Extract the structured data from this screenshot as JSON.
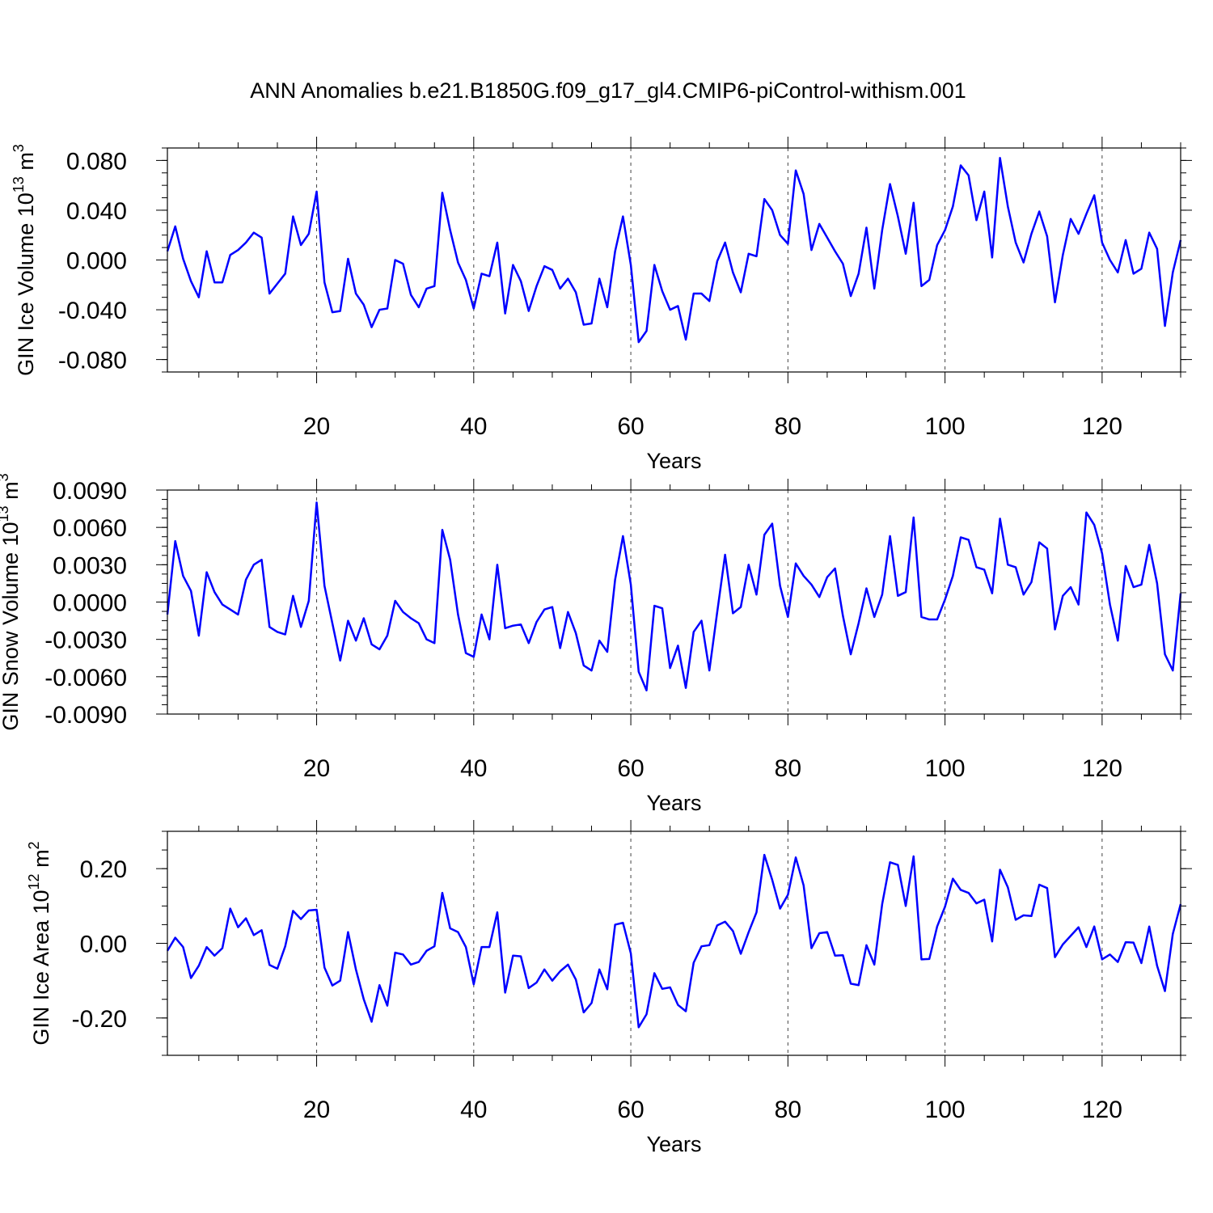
{
  "chart_data": {
    "title": "ANN Anomalies b.e21.B1850G.f09_g17_gl4.CMIP6-piControl-withism.001",
    "line_color": "#0000ff",
    "panels": [
      {
        "type": "line",
        "ylabel": "GIN Ice Volume 10",
        "ylabel_exp": "13",
        "ylabel_unit": " m",
        "ylabel_unit_exp": "3",
        "xlabel": "Years",
        "xlim": [
          1,
          130
        ],
        "ylim": [
          -0.09,
          0.09
        ],
        "xticks": [
          20,
          40,
          60,
          80,
          100,
          120
        ],
        "xtick_labels": [
          "20",
          "40",
          "60",
          "80",
          "100",
          "120"
        ],
        "yticks": [
          -0.08,
          -0.04,
          0.0,
          0.04,
          0.08
        ],
        "ytick_labels": [
          "-0.080",
          "-0.040",
          "0.000",
          "0.040",
          "0.080"
        ],
        "values": [
          0.007,
          0.027,
          0.001,
          -0.017,
          -0.03,
          0.007,
          -0.018,
          -0.018,
          0.004,
          0.008,
          0.014,
          0.022,
          0.018,
          -0.027,
          -0.019,
          -0.011,
          0.035,
          0.012,
          0.021,
          0.055,
          -0.018,
          -0.042,
          -0.041,
          0.001,
          -0.027,
          -0.036,
          -0.054,
          -0.04,
          -0.039,
          0.0,
          -0.003,
          -0.028,
          -0.038,
          -0.023,
          -0.021,
          0.054,
          0.024,
          -0.002,
          -0.016,
          -0.039,
          -0.011,
          -0.013,
          0.014,
          -0.043,
          -0.004,
          -0.017,
          -0.041,
          -0.021,
          -0.005,
          -0.008,
          -0.023,
          -0.015,
          -0.026,
          -0.052,
          -0.051,
          -0.015,
          -0.038,
          0.007,
          0.035,
          -0.004,
          -0.066,
          -0.057,
          -0.004,
          -0.025,
          -0.04,
          -0.037,
          -0.064,
          -0.027,
          -0.027,
          -0.033,
          -0.001,
          0.014,
          -0.01,
          -0.026,
          0.005,
          0.003,
          0.049,
          0.04,
          0.02,
          0.013,
          0.072,
          0.053,
          0.008,
          0.029,
          0.018,
          0.007,
          -0.003,
          -0.029,
          -0.011,
          0.026,
          -0.023,
          0.024,
          0.061,
          0.035,
          0.005,
          0.046,
          -0.021,
          -0.016,
          0.012,
          0.024,
          0.043,
          0.076,
          0.068,
          0.032,
          0.055,
          0.002,
          0.082,
          0.043,
          0.014,
          -0.002,
          0.021,
          0.039,
          0.019,
          -0.034,
          0.004,
          0.033,
          0.021,
          0.037,
          0.052,
          0.014,
          0.0,
          -0.01,
          0.016,
          -0.011,
          -0.007,
          0.022,
          0.009,
          -0.053,
          -0.01,
          0.016
        ]
      },
      {
        "type": "line",
        "ylabel": "GIN Snow Volume 10",
        "ylabel_exp": "13",
        "ylabel_unit": " m",
        "ylabel_unit_exp": "3",
        "xlabel": "Years",
        "xlim": [
          1,
          130
        ],
        "ylim": [
          -0.009,
          0.009
        ],
        "xticks": [
          20,
          40,
          60,
          80,
          100,
          120
        ],
        "xtick_labels": [
          "20",
          "40",
          "60",
          "80",
          "100",
          "120"
        ],
        "yticks": [
          -0.009,
          -0.006,
          -0.003,
          0.0,
          0.003,
          0.006,
          0.009
        ],
        "ytick_labels": [
          "-0.0090",
          "-0.0060",
          "-0.0030",
          "0.0000",
          "0.0030",
          "0.0060",
          "0.0090"
        ],
        "values": [
          -0.001,
          0.0049,
          0.0021,
          0.0009,
          -0.0027,
          0.0024,
          0.0008,
          -0.0002,
          -0.0006,
          -0.001,
          0.0018,
          0.003,
          0.0034,
          -0.002,
          -0.0024,
          -0.0026,
          0.0005,
          -0.002,
          0.0001,
          0.008,
          0.0013,
          -0.0017,
          -0.0047,
          -0.0015,
          -0.0031,
          -0.0013,
          -0.0034,
          -0.0038,
          -0.0027,
          0.0001,
          -0.0008,
          -0.0013,
          -0.0017,
          -0.003,
          -0.0033,
          0.0058,
          0.0034,
          -0.001,
          -0.0041,
          -0.0044,
          -0.001,
          -0.003,
          0.003,
          -0.0021,
          -0.0019,
          -0.0018,
          -0.0033,
          -0.0016,
          -0.0006,
          -0.0004,
          -0.0037,
          -0.0008,
          -0.0025,
          -0.0051,
          -0.0055,
          -0.0031,
          -0.004,
          0.0018,
          0.0053,
          0.0014,
          -0.0056,
          -0.0071,
          -0.0003,
          -0.0005,
          -0.0053,
          -0.0035,
          -0.0069,
          -0.0024,
          -0.0015,
          -0.0055,
          -0.0008,
          0.0038,
          -0.0009,
          -0.0004,
          0.003,
          0.0006,
          0.0054,
          0.0063,
          0.0013,
          -0.0012,
          0.0031,
          0.0021,
          0.0014,
          0.0004,
          0.002,
          0.0027,
          -0.0011,
          -0.0042,
          -0.0017,
          0.0011,
          -0.0012,
          0.0006,
          0.0053,
          0.0005,
          0.0008,
          0.0068,
          -0.0012,
          -0.0014,
          -0.0014,
          0.0002,
          0.0021,
          0.0052,
          0.005,
          0.0028,
          0.0026,
          0.0007,
          0.0067,
          0.003,
          0.0028,
          0.0006,
          0.0016,
          0.0048,
          0.0043,
          -0.0022,
          0.0005,
          0.0012,
          -0.0002,
          0.0072,
          0.0062,
          0.0039,
          -0.0002,
          -0.0031,
          0.0029,
          0.0012,
          0.0014,
          0.0046,
          0.0015,
          -0.0042,
          -0.0055,
          0.0007
        ]
      },
      {
        "type": "line",
        "ylabel": "GIN Ice Area 10",
        "ylabel_exp": "12",
        "ylabel_unit": " m",
        "ylabel_unit_exp": "2",
        "xlabel": "Years",
        "xlim": [
          1,
          130
        ],
        "ylim": [
          -0.3,
          0.3
        ],
        "xticks": [
          20,
          40,
          60,
          80,
          100,
          120
        ],
        "xtick_labels": [
          "20",
          "40",
          "60",
          "80",
          "100",
          "120"
        ],
        "yticks": [
          -0.2,
          0.0,
          0.2
        ],
        "ytick_labels": [
          "-0.20",
          "0.00",
          "0.20"
        ],
        "values": [
          -0.02,
          0.015,
          -0.01,
          -0.093,
          -0.06,
          -0.01,
          -0.033,
          -0.013,
          0.093,
          0.043,
          0.067,
          0.022,
          0.035,
          -0.058,
          -0.068,
          -0.008,
          0.087,
          0.065,
          0.088,
          0.09,
          -0.065,
          -0.113,
          -0.1,
          0.03,
          -0.07,
          -0.15,
          -0.21,
          -0.112,
          -0.167,
          -0.025,
          -0.03,
          -0.057,
          -0.05,
          -0.02,
          -0.008,
          0.135,
          0.04,
          0.03,
          -0.01,
          -0.11,
          -0.01,
          -0.01,
          0.083,
          -0.132,
          -0.033,
          -0.035,
          -0.12,
          -0.105,
          -0.07,
          -0.1,
          -0.075,
          -0.057,
          -0.097,
          -0.185,
          -0.16,
          -0.07,
          -0.123,
          0.05,
          0.055,
          -0.027,
          -0.225,
          -0.19,
          -0.08,
          -0.122,
          -0.118,
          -0.165,
          -0.182,
          -0.052,
          -0.008,
          -0.005,
          0.048,
          0.058,
          0.033,
          -0.028,
          0.03,
          0.083,
          0.237,
          0.17,
          0.093,
          0.13,
          0.23,
          0.155,
          -0.013,
          0.027,
          0.03,
          -0.033,
          -0.032,
          -0.108,
          -0.112,
          -0.005,
          -0.057,
          0.105,
          0.217,
          0.21,
          0.1,
          0.233,
          -0.043,
          -0.042,
          0.045,
          0.098,
          0.173,
          0.143,
          0.135,
          0.107,
          0.117,
          0.005,
          0.197,
          0.15,
          0.063,
          0.075,
          0.073,
          0.157,
          0.148,
          -0.037,
          -0.003,
          0.02,
          0.043,
          -0.01,
          0.045,
          -0.043,
          -0.03,
          -0.05,
          0.003,
          0.002,
          -0.053,
          0.045,
          -0.06,
          -0.128,
          0.025,
          0.105
        ]
      }
    ]
  }
}
